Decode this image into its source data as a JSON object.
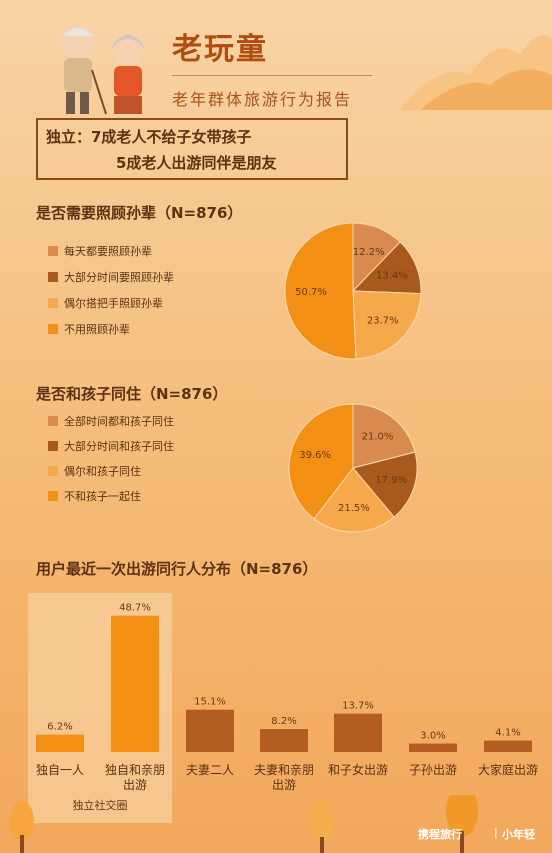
{
  "header": {
    "title": "老玩童",
    "subtitle": "老年群体旅游行为报告"
  },
  "highlight": {
    "line1": "独立：7成老人不给子女带孩子",
    "line2": "5成老人出游同伴是朋友"
  },
  "colors": {
    "c1": "#d98a4e",
    "c2": "#a85a1e",
    "c3": "#f6a94a",
    "c4": "#f48f15",
    "bar_social": "#f48f15",
    "bar_other": "#b45d23"
  },
  "chart_data": [
    {
      "type": "pie",
      "title": "是否需要照顾孙辈（N=876）",
      "labels": [
        "每天都要照顾孙辈",
        "大部分时间要照顾孙辈",
        "偶尔搭把手照顾孙辈",
        "不用照顾孙辈"
      ],
      "values": [
        12.2,
        13.4,
        23.7,
        50.7
      ],
      "value_labels": [
        "12.2%",
        "13.4%",
        "23.7%",
        "50.7%"
      ],
      "legend_position": "left"
    },
    {
      "type": "pie",
      "title": "是否和孩子同住（N=876）",
      "labels": [
        "全部时间都和孩子同住",
        "大部分时间和孩子同住",
        "偶尔和孩子同住",
        "不和孩子一起住"
      ],
      "values": [
        21.0,
        17.9,
        21.5,
        39.6
      ],
      "value_labels": [
        "21.0%",
        "17.9%",
        "21.5%",
        "39.6%"
      ],
      "legend_position": "left"
    },
    {
      "type": "bar",
      "title": "用户最近一次出游同行人分布（N=876）",
      "categories": [
        "独自一人",
        "独自和亲朋出游",
        "夫妻二人",
        "夫妻和亲朋出游",
        "和子女出游",
        "子孙出游",
        "大家庭出游"
      ],
      "category_lines": [
        [
          "独自一人"
        ],
        [
          "独自和亲朋",
          "出游"
        ],
        [
          "夫妻二人"
        ],
        [
          "夫妻和亲朋",
          "出游"
        ],
        [
          "和子女出游"
        ],
        [
          "子孙出游"
        ],
        [
          "大家庭出游"
        ]
      ],
      "values": [
        6.2,
        48.7,
        15.1,
        8.2,
        13.7,
        3.0,
        4.1
      ],
      "value_labels": [
        "6.2%",
        "48.7%",
        "15.1%",
        "8.2%",
        "13.7%",
        "3.0%",
        "4.1%"
      ],
      "group_label": "独立社交圈",
      "group_categories": [
        "独自一人",
        "独自和亲朋出游"
      ]
    }
  ],
  "footer": {
    "brand": "携程旅行",
    "separator": "|",
    "sub": "小年轻"
  }
}
